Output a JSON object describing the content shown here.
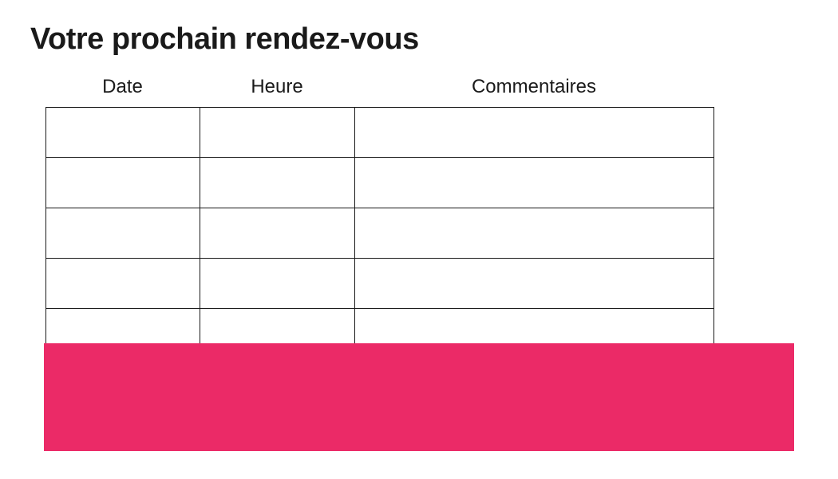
{
  "page": {
    "title": "Votre prochain rendez-vous"
  },
  "table": {
    "headers": [
      "Date",
      "Heure",
      "Commentaires"
    ],
    "rows": [
      [
        "",
        "",
        ""
      ],
      [
        "",
        "",
        ""
      ],
      [
        "",
        "",
        ""
      ],
      [
        "",
        "",
        ""
      ],
      [
        "",
        "",
        ""
      ]
    ]
  },
  "colors": {
    "banner_pink": "#EB2A67",
    "border": "#1a1a1a",
    "text": "#1a1a1a"
  }
}
